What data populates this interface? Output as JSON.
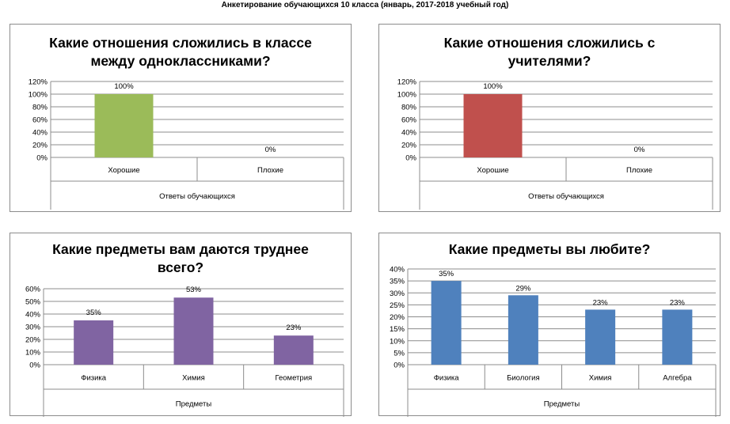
{
  "page": {
    "title": "Анкетирование обучающихся 10 класса (январь, 2017-2018 учебный год)"
  },
  "chart_data": [
    {
      "type": "bar",
      "title_lines": [
        "Какие отношения сложились в классе",
        "между одноклассниками?"
      ],
      "categories": [
        "Хорошие",
        "Плохие"
      ],
      "values": [
        100,
        0
      ],
      "data_labels": [
        "100%",
        "0%"
      ],
      "xlabel": "Ответы обучающихся",
      "ylim": [
        0,
        120
      ],
      "yticks": [
        "0%",
        "20%",
        "40%",
        "60%",
        "80%",
        "100%",
        "120%"
      ],
      "grid": true,
      "legend": "none",
      "color": "#9bbb59"
    },
    {
      "type": "bar",
      "title_lines": [
        "Какие отношения сложились с",
        "учителями?"
      ],
      "categories": [
        "Хорошие",
        "Плохие"
      ],
      "values": [
        100,
        0
      ],
      "data_labels": [
        "100%",
        "0%"
      ],
      "xlabel": "Ответы обучающихся",
      "ylim": [
        0,
        120
      ],
      "yticks": [
        "0%",
        "20%",
        "40%",
        "60%",
        "80%",
        "100%",
        "120%"
      ],
      "grid": true,
      "legend": "none",
      "color": "#c0504d"
    },
    {
      "type": "bar",
      "title_lines": [
        "Какие предметы вам даются труднее",
        "всего?"
      ],
      "categories": [
        "Физика",
        "Химия",
        "Геометрия"
      ],
      "values": [
        35,
        53,
        23
      ],
      "data_labels": [
        "35%",
        "53%",
        "23%"
      ],
      "xlabel": "Предметы",
      "ylim": [
        0,
        60
      ],
      "yticks": [
        "0%",
        "10%",
        "20%",
        "30%",
        "40%",
        "50%",
        "60%"
      ],
      "grid": true,
      "legend": "none",
      "color": "#8064a2"
    },
    {
      "type": "bar",
      "title_lines": [
        "Какие предметы вы любите?"
      ],
      "categories": [
        "Физика",
        "Биология",
        "Химия",
        "Алгебра"
      ],
      "values": [
        35,
        29,
        23,
        23
      ],
      "data_labels": [
        "35%",
        "29%",
        "23%",
        "23%"
      ],
      "xlabel": "Предметы",
      "ylim": [
        0,
        40
      ],
      "yticks": [
        "0%",
        "5%",
        "10%",
        "15%",
        "20%",
        "25%",
        "30%",
        "35%",
        "40%"
      ],
      "grid": true,
      "legend": "none",
      "color": "#4f81bd"
    }
  ]
}
